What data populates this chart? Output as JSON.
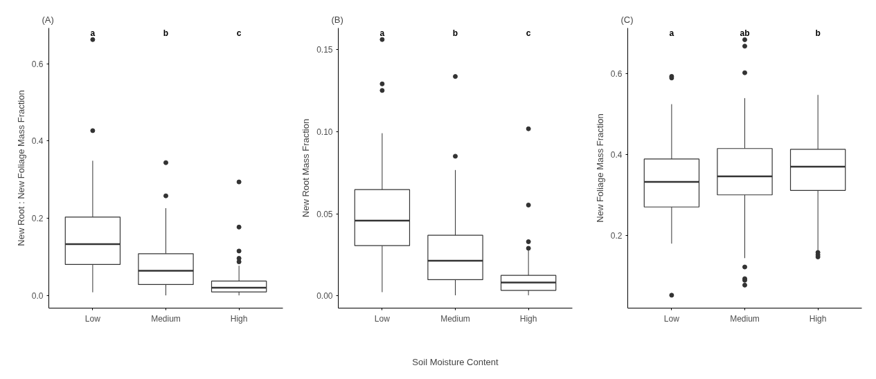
{
  "chart_data": [
    {
      "type": "box",
      "title": "(A)",
      "ylabel": "New Root : New Foliage Mass Fraction",
      "categories": [
        "Low",
        "Medium",
        "High"
      ],
      "ylim": [
        -0.033,
        0.693
      ],
      "yticks": [
        {
          "value": 0,
          "label": "0.0"
        },
        0.2,
        0.4,
        0.6
      ],
      "grid": false,
      "series": [
        {
          "color": "#333333",
          "boxes": [
            {
              "low": 0.008,
              "q1": 0.08,
              "median": 0.133,
              "q3": 0.203,
              "high": 0.349,
              "outliers": [
                0.427,
                0.663
              ]
            },
            {
              "low": 0.0,
              "q1": 0.028,
              "median": 0.064,
              "q3": 0.108,
              "high": 0.226,
              "outliers": [
                0.258,
                0.344
              ]
            },
            {
              "low": 0.0,
              "q1": 0.009,
              "median": 0.02,
              "q3": 0.037,
              "high": 0.077,
              "outliers": [
                0.087,
                0.096,
                0.115,
                0.177,
                0.294
              ]
            }
          ]
        }
      ],
      "annotations": [
        "a",
        "b",
        "c"
      ]
    },
    {
      "type": "box",
      "title": "(B)",
      "ylabel": "New Root Mass Fraction",
      "xlabel": "Soil Moisture Content",
      "categories": [
        "Low",
        "Medium",
        "High"
      ],
      "ylim": [
        -0.0074,
        0.163
      ],
      "yticks": [
        {
          "value": 0,
          "label": "0.00"
        },
        {
          "value": 0.05,
          "label": "0.05"
        },
        {
          "value": 0.1,
          "label": "0.10"
        },
        {
          "value": 0.15,
          "label": "0.15"
        }
      ],
      "grid": false,
      "series": [
        {
          "color": "#333333",
          "boxes": [
            {
              "low": 0.0023,
              "q1": 0.0306,
              "median": 0.0458,
              "q3": 0.0647,
              "high": 0.099,
              "outliers": [
                0.125,
                0.129,
                0.156
              ]
            },
            {
              "low": 0.0004,
              "q1": 0.0099,
              "median": 0.0214,
              "q3": 0.0369,
              "high": 0.0766,
              "outliers": [
                0.085,
                0.1335
              ]
            },
            {
              "low": 0.0004,
              "q1": 0.0034,
              "median": 0.0082,
              "q3": 0.0125,
              "high": 0.0277,
              "outliers": [
                0.029,
                0.033,
                0.0553,
                0.1017
              ]
            }
          ]
        }
      ],
      "annotations": [
        "a",
        "b",
        "c"
      ]
    },
    {
      "type": "box",
      "title": "(C)",
      "ylabel": "New Foliage Mass Fraction",
      "categories": [
        "Low",
        "Medium",
        "High"
      ],
      "ylim": [
        0.019,
        0.714
      ],
      "yticks": [
        0.2,
        0.4,
        0.6
      ],
      "grid": false,
      "series": [
        {
          "color": "#333333",
          "boxes": [
            {
              "low": 0.179,
              "q1": 0.27,
              "median": 0.332,
              "q3": 0.389,
              "high": 0.525,
              "outliers": [
                0.051,
                0.59,
                0.594
              ]
            },
            {
              "low": 0.143,
              "q1": 0.3,
              "median": 0.346,
              "q3": 0.415,
              "high": 0.54,
              "outliers": [
                0.076,
                0.088,
                0.092,
                0.121,
                0.603,
                0.669,
                0.685
              ]
            },
            {
              "low": 0.16,
              "q1": 0.311,
              "median": 0.37,
              "q3": 0.413,
              "high": 0.548,
              "outliers": [
                0.146,
                0.151,
                0.157
              ]
            }
          ]
        }
      ],
      "annotations": [
        "a",
        "ab",
        "b"
      ]
    }
  ]
}
